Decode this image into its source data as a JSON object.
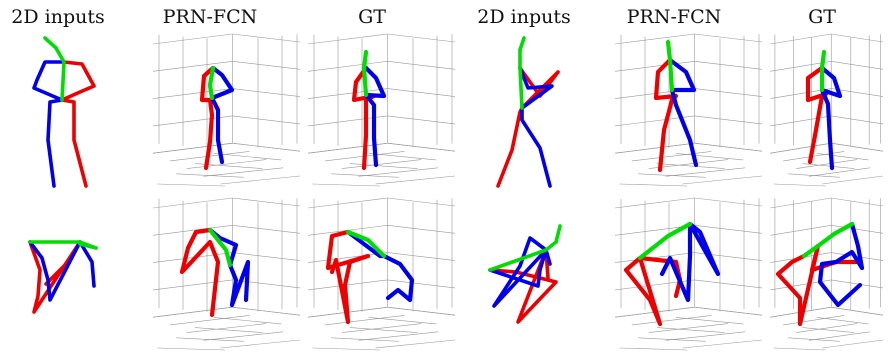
{
  "headers": [
    "2D inputs",
    "PRN-FCN",
    "GT",
    "2D inputs",
    "PRN-FCN",
    "GT"
  ],
  "colors": {
    "left_limb": "#0000ee",
    "right_limb": "#ee0000",
    "torso": "#00dd00",
    "grid": "#999999"
  },
  "panels": [
    {
      "row": 0,
      "col": 0,
      "kind": "2d",
      "head": [
        [
          45,
          38
        ],
        [
          56,
          48
        ]
      ],
      "green": [
        [
          56,
          48
        ],
        [
          64,
          62
        ],
        [
          62,
          100
        ]
      ],
      "blue": [
        [
          64,
          62
        ],
        [
          45,
          62
        ],
        [
          37,
          80
        ],
        [
          34,
          88
        ],
        [
          62,
          100
        ],
        [
          50,
          102
        ],
        [
          48,
          140
        ],
        [
          54,
          186
        ]
      ],
      "red": [
        [
          64,
          62
        ],
        [
          82,
          64
        ],
        [
          94,
          86
        ],
        [
          80,
          92
        ],
        [
          62,
          100
        ],
        [
          74,
          102
        ],
        [
          74,
          140
        ],
        [
          86,
          186
        ]
      ]
    },
    {
      "row": 0,
      "col": 1,
      "kind": "3d",
      "green": [
        [
          213,
          68
        ],
        [
          210,
          85
        ],
        [
          212,
          98
        ]
      ],
      "blue": [
        [
          213,
          68
        ],
        [
          222,
          75
        ],
        [
          232,
          90
        ],
        [
          212,
          98
        ],
        [
          218,
          110
        ],
        [
          218,
          140
        ],
        [
          222,
          162
        ]
      ],
      "red": [
        [
          213,
          68
        ],
        [
          204,
          76
        ],
        [
          202,
          100
        ],
        [
          210,
          100
        ],
        [
          212,
          115
        ],
        [
          210,
          142
        ],
        [
          206,
          168
        ]
      ]
    },
    {
      "row": 0,
      "col": 2,
      "kind": "3d",
      "green": [
        [
          366,
          52
        ],
        [
          364,
          68
        ],
        [
          366,
          95
        ]
      ],
      "blue": [
        [
          366,
          68
        ],
        [
          376,
          78
        ],
        [
          384,
          96
        ],
        [
          366,
          95
        ],
        [
          374,
          105
        ],
        [
          374,
          138
        ],
        [
          376,
          165
        ]
      ],
      "red": [
        [
          366,
          68
        ],
        [
          356,
          82
        ],
        [
          354,
          100
        ],
        [
          374,
          96
        ],
        [
          366,
          100
        ],
        [
          366,
          135
        ],
        [
          364,
          168
        ]
      ]
    },
    {
      "row": 0,
      "col": 3,
      "kind": "2d",
      "head": [
        [
          524,
          38
        ],
        [
          520,
          50
        ]
      ],
      "green": [
        [
          520,
          50
        ],
        [
          520,
          68
        ],
        [
          522,
          108
        ]
      ],
      "blue": [
        [
          520,
          68
        ],
        [
          528,
          88
        ],
        [
          552,
          86
        ],
        [
          522,
          108
        ],
        [
          522,
          120
        ],
        [
          540,
          148
        ],
        [
          550,
          186
        ]
      ],
      "red": [
        [
          520,
          68
        ],
        [
          540,
          96
        ],
        [
          558,
          72
        ],
        [
          522,
          108
        ],
        [
          520,
          112
        ],
        [
          512,
          150
        ],
        [
          498,
          186
        ]
      ]
    },
    {
      "row": 0,
      "col": 4,
      "kind": "3d",
      "green": [
        [
          668,
          42
        ],
        [
          670,
          60
        ],
        [
          672,
          90
        ]
      ],
      "blue": [
        [
          670,
          60
        ],
        [
          686,
          72
        ],
        [
          694,
          90
        ],
        [
          672,
          90
        ],
        [
          676,
          105
        ],
        [
          690,
          140
        ],
        [
          696,
          165
        ]
      ],
      "red": [
        [
          670,
          60
        ],
        [
          658,
          72
        ],
        [
          656,
          98
        ],
        [
          676,
          96
        ],
        [
          672,
          100
        ],
        [
          664,
          130
        ],
        [
          660,
          170
        ]
      ]
    },
    {
      "row": 0,
      "col": 5,
      "kind": "3d",
      "green": [
        [
          824,
          52
        ],
        [
          822,
          68
        ],
        [
          822,
          90
        ]
      ],
      "blue": [
        [
          822,
          68
        ],
        [
          834,
          78
        ],
        [
          840,
          96
        ],
        [
          822,
          90
        ],
        [
          828,
          104
        ],
        [
          830,
          140
        ],
        [
          832,
          168
        ]
      ],
      "red": [
        [
          822,
          68
        ],
        [
          808,
          78
        ],
        [
          808,
          100
        ],
        [
          826,
          94
        ],
        [
          822,
          96
        ],
        [
          816,
          130
        ],
        [
          810,
          162
        ]
      ]
    },
    {
      "row": 1,
      "col": 0,
      "kind": "2d",
      "head": [
        [
          80,
          244
        ],
        [
          96,
          248
        ]
      ],
      "green": [
        [
          30,
          242
        ],
        [
          80,
          242
        ],
        [
          96,
          248
        ]
      ],
      "blue": [
        [
          30,
          242
        ],
        [
          42,
          258
        ],
        [
          48,
          280
        ],
        [
          50,
          300
        ],
        [
          80,
          242
        ],
        [
          92,
          262
        ],
        [
          94,
          286
        ]
      ],
      "red": [
        [
          30,
          242
        ],
        [
          40,
          270
        ],
        [
          38,
          296
        ],
        [
          34,
          312
        ],
        [
          80,
          242
        ],
        [
          68,
          262
        ],
        [
          46,
          284
        ]
      ]
    },
    {
      "row": 1,
      "col": 1,
      "kind": "3d",
      "green": [
        [
          210,
          230
        ],
        [
          226,
          250
        ],
        [
          230,
          265
        ]
      ],
      "blue": [
        [
          210,
          230
        ],
        [
          220,
          238
        ],
        [
          236,
          245
        ],
        [
          230,
          265
        ],
        [
          236,
          280
        ],
        [
          232,
          305
        ],
        [
          248,
          262
        ],
        [
          246,
          300
        ]
      ],
      "red": [
        [
          210,
          230
        ],
        [
          196,
          232
        ],
        [
          188,
          248
        ],
        [
          182,
          272
        ],
        [
          210,
          242
        ],
        [
          218,
          262
        ],
        [
          212,
          315
        ]
      ]
    },
    {
      "row": 1,
      "col": 2,
      "kind": "3d",
      "green": [
        [
          348,
          232
        ],
        [
          368,
          240
        ],
        [
          384,
          256
        ]
      ],
      "blue": [
        [
          348,
          232
        ],
        [
          364,
          244
        ],
        [
          380,
          256
        ],
        [
          384,
          256
        ],
        [
          400,
          264
        ],
        [
          412,
          280
        ],
        [
          410,
          300
        ],
        [
          398,
          290
        ],
        [
          388,
          298
        ]
      ],
      "red": [
        [
          348,
          232
        ],
        [
          332,
          236
        ],
        [
          328,
          268
        ],
        [
          368,
          256
        ],
        [
          350,
          262
        ],
        [
          345,
          285
        ],
        [
          348,
          322
        ],
        [
          336,
          260
        ],
        [
          332,
          272
        ]
      ]
    },
    {
      "row": 1,
      "col": 3,
      "kind": "2d",
      "head": [
        [
          556,
          242
        ],
        [
          560,
          226
        ]
      ],
      "green": [
        [
          490,
          270
        ],
        [
          546,
          250
        ],
        [
          556,
          242
        ]
      ],
      "blue": [
        [
          490,
          270
        ],
        [
          538,
          286
        ],
        [
          540,
          270
        ],
        [
          546,
          250
        ],
        [
          530,
          238
        ],
        [
          520,
          266
        ],
        [
          494,
          306
        ],
        [
          546,
          250
        ],
        [
          550,
          264
        ]
      ],
      "red": [
        [
          490,
          270
        ],
        [
          516,
          272
        ],
        [
          556,
          282
        ],
        [
          518,
          322
        ],
        [
          546,
          250
        ],
        [
          548,
          278
        ]
      ]
    },
    {
      "row": 1,
      "col": 4,
      "kind": "3d",
      "green": [
        [
          690,
          224
        ],
        [
          668,
          236
        ],
        [
          640,
          258
        ]
      ],
      "blue": [
        [
          690,
          224
        ],
        [
          700,
          232
        ],
        [
          718,
          274
        ],
        [
          690,
          224
        ],
        [
          690,
          256
        ],
        [
          688,
          300
        ],
        [
          670,
          258
        ],
        [
          662,
          274
        ]
      ],
      "red": [
        [
          640,
          258
        ],
        [
          626,
          270
        ],
        [
          650,
          300
        ],
        [
          660,
          324
        ],
        [
          640,
          258
        ],
        [
          676,
          262
        ],
        [
          680,
          280
        ],
        [
          676,
          296
        ]
      ]
    },
    {
      "row": 1,
      "col": 5,
      "kind": "3d",
      "green": [
        [
          852,
          224
        ],
        [
          834,
          234
        ],
        [
          818,
          246
        ],
        [
          804,
          256
        ]
      ],
      "blue": [
        [
          852,
          224
        ],
        [
          858,
          246
        ],
        [
          862,
          268
        ],
        [
          852,
          252
        ],
        [
          836,
          262
        ],
        [
          822,
          264
        ],
        [
          820,
          282
        ],
        [
          838,
          305
        ],
        [
          860,
          285
        ]
      ],
      "red": [
        [
          804,
          256
        ],
        [
          792,
          262
        ],
        [
          778,
          274
        ],
        [
          800,
          298
        ],
        [
          800,
          324
        ],
        [
          818,
          246
        ],
        [
          812,
          270
        ],
        [
          836,
          262
        ],
        [
          856,
          262
        ]
      ]
    }
  ]
}
